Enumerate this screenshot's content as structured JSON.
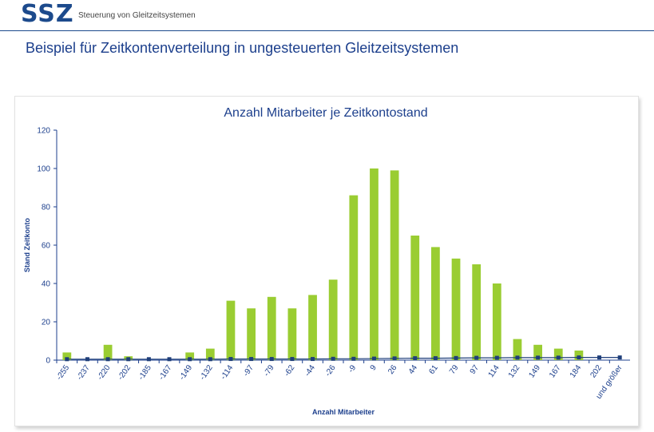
{
  "header": {
    "logo_text": "SSZ",
    "subtitle": "Steuerung von Gleitzeitsystemen"
  },
  "page": {
    "title": "Beispiel für Zeitkontenverteilung in ungesteuerten Gleitzeitsystemen"
  },
  "colors": {
    "brand": "#1c4a8c",
    "bar": "#9acd32",
    "marker": "#1f3f7a"
  },
  "chart_data": {
    "type": "bar",
    "title": "Anzahl Mitarbeiter je Zeitkontostand",
    "xlabel": "Anzahl Mitarbeiter",
    "ylabel": "Stand Zeitkonto",
    "ylim": [
      0,
      120
    ],
    "yticks": [
      0,
      20,
      40,
      60,
      80,
      100,
      120
    ],
    "grid": false,
    "categories": [
      "-255",
      "-237",
      "-220",
      "-202",
      "-185",
      "-167",
      "-149",
      "-132",
      "-114",
      "-97",
      "-79",
      "-62",
      "-44",
      "-26",
      "-9",
      "9",
      "26",
      "44",
      "61",
      "79",
      "97",
      "114",
      "132",
      "149",
      "167",
      "184",
      "202",
      "und größer"
    ],
    "series": [
      {
        "type": "bar",
        "values": [
          4,
          0,
          8,
          2,
          0,
          0,
          4,
          6,
          31,
          27,
          33,
          27,
          34,
          42,
          86,
          100,
          99,
          65,
          59,
          53,
          50,
          40,
          11,
          8,
          6,
          5,
          0,
          0
        ]
      },
      {
        "type": "line-markers",
        "values": [
          0.5,
          0.5,
          0.5,
          0.5,
          0.5,
          0.5,
          0.5,
          0.5,
          0.6,
          0.6,
          0.6,
          0.6,
          0.6,
          0.7,
          0.7,
          0.8,
          0.9,
          1.0,
          1.0,
          1.1,
          1.2,
          1.2,
          1.3,
          1.3,
          1.3,
          1.4,
          1.4,
          1.4
        ]
      }
    ]
  }
}
